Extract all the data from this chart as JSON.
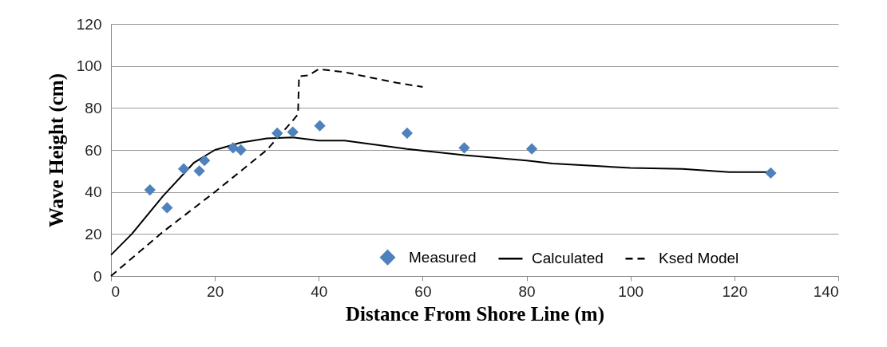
{
  "chart_data": {
    "type": "line",
    "xlabel": "Distance From Shore Line (m)",
    "ylabel": "Wave Height (cm)",
    "xlim": [
      0,
      140
    ],
    "xticks": [
      0,
      20,
      40,
      60,
      80,
      100,
      120,
      140
    ],
    "ylim": [
      0,
      120
    ],
    "yticks": [
      0,
      20,
      40,
      60,
      80,
      100,
      120
    ],
    "grid": "y",
    "legend": "bottom",
    "series": [
      {
        "name": "Measured",
        "type": "scatter",
        "marker": "diamond",
        "color": "#4f81bd",
        "x": [
          7.5,
          10.8,
          14,
          17,
          18,
          23.5,
          25,
          32,
          35,
          40.2,
          57,
          68,
          81,
          127
        ],
        "values": [
          41,
          32.5,
          51,
          50,
          55,
          61,
          60,
          68,
          68.5,
          71.5,
          68,
          61,
          60.5,
          49
        ]
      },
      {
        "name": "Calculated",
        "type": "line",
        "line_style": "solid",
        "color": "#000000",
        "x": [
          0,
          4,
          10,
          16,
          20,
          25,
          30,
          35,
          40,
          45,
          57,
          68,
          80,
          85,
          100,
          110,
          119,
          127
        ],
        "values": [
          10,
          20,
          38,
          54,
          60,
          63.5,
          65.5,
          66,
          64.5,
          64.5,
          60.5,
          57.5,
          55,
          53.5,
          51.5,
          51,
          49.5,
          49.5
        ]
      },
      {
        "name": "Ksed Model",
        "type": "line",
        "line_style": "dashed",
        "color": "#000000",
        "x": [
          0,
          10,
          20,
          30,
          35,
          36,
          36.2,
          38,
          40,
          45,
          50,
          55,
          60
        ],
        "values": [
          0,
          21,
          40,
          60,
          74,
          77,
          95,
          95.5,
          98.5,
          97,
          94.5,
          92,
          90
        ]
      }
    ]
  }
}
